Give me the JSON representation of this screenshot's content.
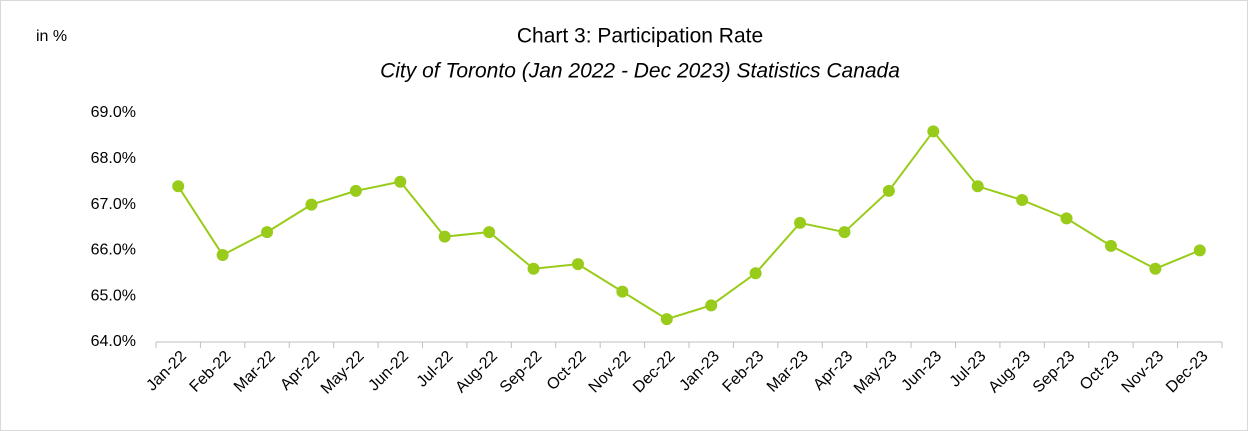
{
  "chart_data": {
    "type": "line",
    "title": "Chart 3: Participation Rate",
    "subtitle": "City of Toronto (Jan 2022 - Dec 2023) Statistics Canada",
    "ylabel": "in %",
    "categories": [
      "Jan-22",
      "Feb-22",
      "Mar-22",
      "Apr-22",
      "May-22",
      "Jun-22",
      "Jul-22",
      "Aug-22",
      "Sep-22",
      "Oct-22",
      "Nov-22",
      "Dec-22",
      "Jan-23",
      "Feb-23",
      "Mar-23",
      "Apr-23",
      "May-23",
      "Jun-23",
      "Jul-23",
      "Aug-23",
      "Sep-23",
      "Oct-23",
      "Nov-23",
      "Dec-23"
    ],
    "values": [
      67.4,
      65.9,
      66.4,
      67.0,
      67.3,
      67.5,
      66.3,
      66.4,
      65.6,
      65.7,
      65.1,
      64.5,
      64.8,
      65.5,
      66.6,
      66.4,
      67.3,
      68.6,
      67.4,
      67.1,
      66.7,
      66.1,
      65.6,
      66.0
    ],
    "color": "#99cc1a",
    "ylim": [
      64,
      69
    ],
    "yticks": [
      {
        "value": 64,
        "label": "64.0%"
      },
      {
        "value": 65,
        "label": "65.0%"
      },
      {
        "value": 66,
        "label": "66.0%"
      },
      {
        "value": 67,
        "label": "67.0%"
      },
      {
        "value": 68,
        "label": "68.0%"
      },
      {
        "value": 69,
        "label": "69.0%"
      }
    ],
    "grid": false
  }
}
